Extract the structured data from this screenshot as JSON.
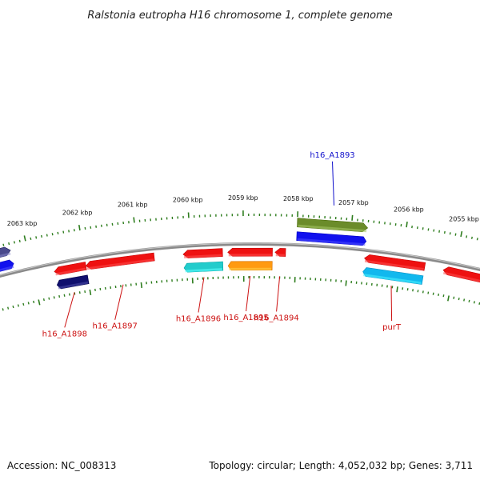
{
  "title": "Ralstonia eutropha H16 chromosome 1, complete genome",
  "footer": {
    "accession": "Accession: NC_008313",
    "summary": "Topology: circular; Length: 4,052,032 bp; Genes: 3,711"
  },
  "colors": {
    "backbone": "#8a8a8a",
    "ticks": "#2e7d1e",
    "label_red": "#cc1111",
    "label_blue": "#1111cc",
    "red": "#ee1111",
    "blue": "#1111ee",
    "navy": "#10106e",
    "olive": "#6b8c2a",
    "cyan": "#22cccc",
    "orange": "#ff9a11",
    "skyblue": "#11b8ee",
    "slate": "#4a4a8c"
  },
  "scale": {
    "kbp_labels": [
      "2063 kbp",
      "2062 kbp",
      "2061 kbp",
      "2060 kbp",
      "2059 kbp",
      "2058 kbp",
      "2057 kbp",
      "2056 kbp",
      "2055 kbp"
    ]
  },
  "genes": [
    {
      "label": "h16_A1898",
      "start_kbp": 2062.6,
      "end_kbp": 2062.0,
      "strand": "-",
      "track": "lower",
      "colors": [
        "red",
        "navy"
      ],
      "label_color": "label_red",
      "label_side": "below"
    },
    {
      "label": "h16_A1897",
      "start_kbp": 2062.0,
      "end_kbp": 2060.7,
      "strand": "-",
      "track": "lower",
      "colors": [
        "red"
      ],
      "label_color": "label_red",
      "label_side": "below"
    },
    {
      "label": "h16_A1896",
      "start_kbp": 2060.15,
      "end_kbp": 2059.4,
      "strand": "-",
      "track": "lower",
      "colors": [
        "red",
        "cyan"
      ],
      "label_color": "label_red",
      "label_side": "below"
    },
    {
      "label": "h16_A1895",
      "start_kbp": 2059.3,
      "end_kbp": 2058.45,
      "strand": "-",
      "track": "lower",
      "colors": [
        "red",
        "orange"
      ],
      "label_color": "label_red",
      "label_side": "below"
    },
    {
      "label": "h16_A1894",
      "start_kbp": 2058.4,
      "end_kbp": 2058.2,
      "strand": "-",
      "track": "lower",
      "colors": [
        "red"
      ],
      "label_color": "label_red",
      "label_side": "below"
    },
    {
      "label": "h16_A1893",
      "start_kbp": 2058.0,
      "end_kbp": 2056.7,
      "strand": "+",
      "track": "upper",
      "colors": [
        "olive",
        "blue"
      ],
      "label_color": "label_blue",
      "label_side": "above"
    },
    {
      "label": "purT",
      "start_kbp": 2056.7,
      "end_kbp": 2055.55,
      "strand": "-",
      "track": "lower",
      "colors": [
        "red",
        "skyblue"
      ],
      "label_color": "label_red",
      "label_side": "below"
    },
    {
      "label": "",
      "start_kbp": 2055.2,
      "end_kbp": 2054.1,
      "strand": "-",
      "track": "lower",
      "colors": [
        "red"
      ],
      "label_color": "label_red",
      "label_side": "none"
    },
    {
      "label": "",
      "start_kbp": 2063.7,
      "end_kbp": 2063.3,
      "strand": "+",
      "track": "upper",
      "colors": [
        "slate",
        "blue"
      ],
      "label_color": "label_blue",
      "label_side": "none"
    }
  ]
}
